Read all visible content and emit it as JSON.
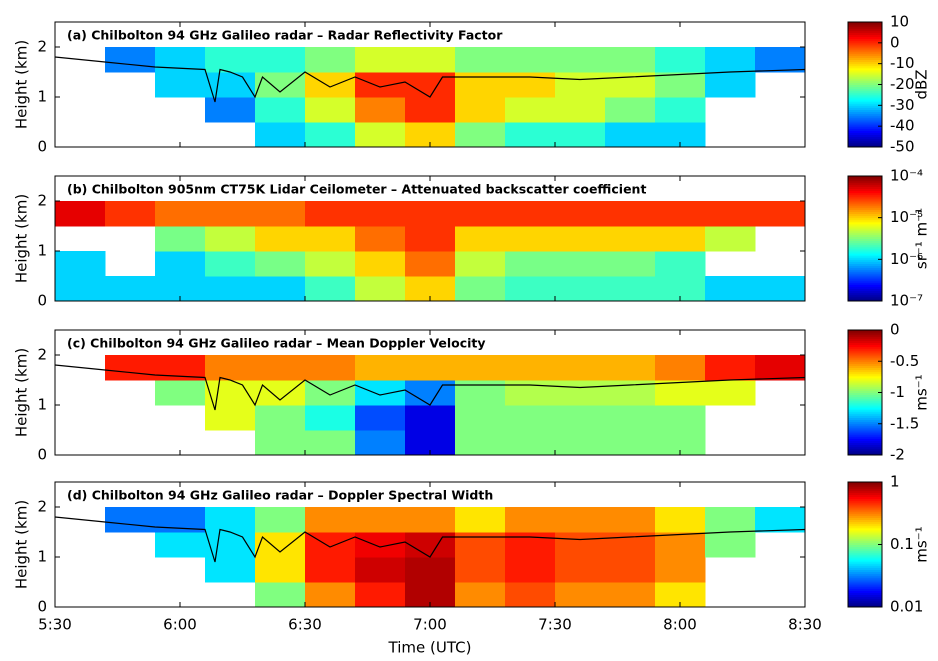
{
  "chart_data": [
    {
      "type": "heatmap",
      "title": "(a) Chilbolton 94 GHz Galileo radar – Radar Reflectivity Factor",
      "ylabel": "Height (km)",
      "ylim": [
        0,
        2.5
      ],
      "yticks": [
        0,
        1,
        2
      ],
      "xbins": [
        5.5,
        5.7,
        5.9,
        6.1,
        6.3,
        6.5,
        6.7,
        6.9,
        7.1,
        7.3,
        7.5,
        7.7,
        7.9,
        8.1,
        8.3,
        8.5
      ],
      "ybins": [
        0,
        0.5,
        1,
        1.5,
        2
      ],
      "z": [
        [
          null,
          null,
          null,
          null,
          -30,
          -25,
          -15,
          -10,
          -20,
          -25,
          -25,
          -30,
          -30,
          null,
          null
        ],
        [
          null,
          null,
          null,
          -35,
          -25,
          -15,
          -5,
          0,
          -10,
          -15,
          -15,
          -20,
          -25,
          null,
          null
        ],
        [
          null,
          null,
          -30,
          -30,
          -20,
          -10,
          0,
          0,
          -10,
          -10,
          -15,
          -15,
          -20,
          -30,
          null
        ],
        [
          null,
          -35,
          -30,
          -25,
          -25,
          -20,
          -15,
          -15,
          -20,
          -20,
          -20,
          -20,
          -25,
          -30,
          -35
        ]
      ],
      "line": {
        "x": [
          5.5,
          5.7,
          5.9,
          6.1,
          6.14,
          6.16,
          6.2,
          6.25,
          6.3,
          6.33,
          6.4,
          6.5,
          6.6,
          6.7,
          6.8,
          6.9,
          7.0,
          7.05,
          7.2,
          7.4,
          7.6,
          7.8,
          8.0,
          8.2,
          8.5
        ],
        "y": [
          1.8,
          1.7,
          1.6,
          1.55,
          0.9,
          1.55,
          1.5,
          1.4,
          1.0,
          1.4,
          1.1,
          1.5,
          1.2,
          1.4,
          1.2,
          1.3,
          1.0,
          1.4,
          1.4,
          1.4,
          1.35,
          1.4,
          1.45,
          1.5,
          1.55
        ]
      },
      "clim": [
        -50,
        10
      ],
      "cticks": [
        10,
        0,
        -10,
        -20,
        -30,
        -40,
        -50
      ],
      "clabel": "dBZ",
      "log": false
    },
    {
      "type": "heatmap",
      "title": "(b) Chilbolton 905nm CT75K Lidar Ceilometer – Attenuated backscatter coefficient",
      "ylabel": "Height (km)",
      "ylim": [
        0,
        2.5
      ],
      "yticks": [
        0,
        1,
        2
      ],
      "xbins": [
        5.5,
        5.7,
        5.9,
        6.1,
        6.3,
        6.5,
        6.7,
        6.9,
        7.1,
        7.3,
        7.5,
        7.7,
        7.9,
        8.1,
        8.3,
        8.5
      ],
      "ybins": [
        0,
        0.5,
        1,
        1.5,
        2
      ],
      "z": [
        [
          1e-06,
          1e-06,
          1e-06,
          1e-06,
          1e-06,
          2e-06,
          5e-06,
          1e-05,
          3e-06,
          2e-06,
          2e-06,
          2e-06,
          2e-06,
          1e-06,
          1e-06
        ],
        [
          1e-06,
          null,
          1e-06,
          2e-06,
          3e-06,
          5e-06,
          1e-05,
          2e-05,
          5e-06,
          3e-06,
          3e-06,
          3e-06,
          2e-06,
          null,
          null
        ],
        [
          null,
          null,
          3e-06,
          5e-06,
          1e-05,
          1e-05,
          2e-05,
          3e-05,
          1e-05,
          1e-05,
          1e-05,
          1e-05,
          1e-05,
          5e-06,
          null
        ],
        [
          5e-05,
          3e-05,
          2e-05,
          2e-05,
          2e-05,
          3e-05,
          3e-05,
          3e-05,
          3e-05,
          3e-05,
          3e-05,
          3e-05,
          3e-05,
          3e-05,
          3e-05
        ]
      ],
      "clim": [
        1e-07,
        0.0001
      ],
      "cticks": [
        {
          "value": 0.0001,
          "label": "10⁻⁴"
        },
        {
          "value": 1e-05,
          "label": "10⁻⁵"
        },
        {
          "value": 1e-06,
          "label": "10⁻⁶"
        },
        {
          "value": 1e-07,
          "label": "10⁻⁷"
        }
      ],
      "clabel": "sr⁻¹ m⁻¹",
      "log": true
    },
    {
      "type": "heatmap",
      "title": "(c) Chilbolton 94 GHz Galileo radar – Mean Doppler Velocity",
      "ylabel": "Height (km)",
      "ylim": [
        0,
        2.5
      ],
      "yticks": [
        0,
        1,
        2
      ],
      "xbins": [
        5.5,
        5.7,
        5.9,
        6.1,
        6.3,
        6.5,
        6.7,
        6.9,
        7.1,
        7.3,
        7.5,
        7.7,
        7.9,
        8.1,
        8.3,
        8.5
      ],
      "ybins": [
        0,
        0.5,
        1,
        1.5,
        2
      ],
      "z": [
        [
          null,
          null,
          null,
          null,
          -1,
          -1,
          -1.5,
          -1.8,
          -1,
          -1,
          -1,
          -1,
          -1,
          null,
          null
        ],
        [
          null,
          null,
          null,
          -0.8,
          -1,
          -1.2,
          -1.6,
          -1.8,
          -1,
          -1,
          -1,
          -1,
          -1,
          null,
          null
        ],
        [
          null,
          null,
          -1,
          -0.8,
          -0.8,
          -1,
          -1.3,
          -1.5,
          -1,
          -0.9,
          -0.9,
          -0.9,
          -0.8,
          -0.8,
          null
        ],
        [
          null,
          -0.3,
          -0.3,
          -0.5,
          -0.5,
          -0.5,
          -0.6,
          -0.6,
          -0.6,
          -0.6,
          -0.6,
          -0.6,
          -0.5,
          -0.3,
          -0.2
        ]
      ],
      "line": {
        "x": [
          5.5,
          5.7,
          5.9,
          6.1,
          6.14,
          6.16,
          6.2,
          6.25,
          6.3,
          6.33,
          6.4,
          6.5,
          6.6,
          6.7,
          6.8,
          6.9,
          7.0,
          7.05,
          7.2,
          7.4,
          7.6,
          7.8,
          8.0,
          8.2,
          8.5
        ],
        "y": [
          1.8,
          1.7,
          1.6,
          1.55,
          0.9,
          1.55,
          1.5,
          1.4,
          1.0,
          1.4,
          1.1,
          1.5,
          1.2,
          1.4,
          1.2,
          1.3,
          1.0,
          1.4,
          1.4,
          1.4,
          1.35,
          1.4,
          1.45,
          1.5,
          1.55
        ]
      },
      "clim": [
        -2,
        0
      ],
      "cticks": [
        0,
        -0.5,
        -1,
        -1.5,
        -2
      ],
      "clabel": "ms⁻¹",
      "log": false
    },
    {
      "type": "heatmap",
      "title": "(d) Chilbolton 94 GHz Galileo radar – Doppler Spectral Width",
      "ylabel": "Height (km)",
      "ylim": [
        0,
        2.5
      ],
      "yticks": [
        0,
        1,
        2
      ],
      "xbins": [
        5.5,
        5.7,
        5.9,
        6.1,
        6.3,
        6.5,
        6.7,
        6.9,
        7.1,
        7.3,
        7.5,
        7.7,
        7.9,
        8.1,
        8.3,
        8.5
      ],
      "ybins": [
        0,
        0.5,
        1,
        1.5,
        2
      ],
      "z": [
        [
          null,
          null,
          null,
          null,
          0.1,
          0.3,
          0.5,
          0.8,
          0.3,
          0.4,
          0.3,
          0.3,
          0.2,
          null,
          null
        ],
        [
          null,
          null,
          null,
          0.05,
          0.2,
          0.5,
          0.7,
          0.8,
          0.4,
          0.5,
          0.4,
          0.4,
          0.3,
          null,
          null
        ],
        [
          null,
          null,
          0.05,
          0.05,
          0.2,
          0.5,
          0.6,
          0.7,
          0.4,
          0.5,
          0.4,
          0.4,
          0.3,
          0.1,
          null
        ],
        [
          null,
          0.03,
          0.03,
          0.05,
          0.1,
          0.3,
          0.3,
          0.3,
          0.2,
          0.3,
          0.3,
          0.3,
          0.2,
          0.1,
          0.05
        ]
      ],
      "line": {
        "x": [
          5.5,
          5.7,
          5.9,
          6.1,
          6.14,
          6.16,
          6.2,
          6.25,
          6.3,
          6.33,
          6.4,
          6.5,
          6.6,
          6.7,
          6.8,
          6.9,
          7.0,
          7.05,
          7.2,
          7.4,
          7.6,
          7.8,
          8.0,
          8.2,
          8.5
        ],
        "y": [
          1.8,
          1.7,
          1.6,
          1.55,
          0.9,
          1.55,
          1.5,
          1.4,
          1.0,
          1.4,
          1.1,
          1.5,
          1.2,
          1.4,
          1.2,
          1.3,
          1.0,
          1.4,
          1.4,
          1.4,
          1.35,
          1.4,
          1.45,
          1.5,
          1.55
        ]
      },
      "clim": [
        0.01,
        1
      ],
      "cticks": [
        1,
        0.1,
        0.01
      ],
      "clabel": "ms⁻¹",
      "log": true,
      "xlim": [
        5.5,
        8.5
      ],
      "xticks": [
        {
          "value": 5.5,
          "label": "5:30"
        },
        {
          "value": 6,
          "label": "6:00"
        },
        {
          "value": 6.5,
          "label": "6:30"
        },
        {
          "value": 7,
          "label": "7:00"
        },
        {
          "value": 7.5,
          "label": "7:30"
        },
        {
          "value": 8,
          "label": "8:00"
        },
        {
          "value": 8.5,
          "label": "8:30"
        }
      ],
      "xlabel": "Time (UTC)"
    }
  ]
}
